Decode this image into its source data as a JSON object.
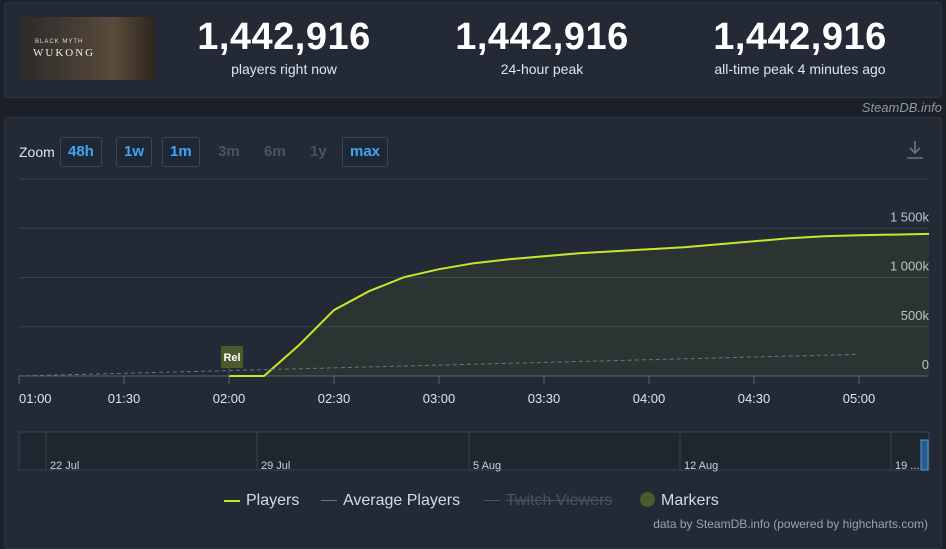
{
  "thumbnail": {
    "subtitle": "BLACK MYTH",
    "title": "WUKONG"
  },
  "stats": [
    {
      "value": "1,442,916",
      "label": "players right now"
    },
    {
      "value": "1,442,916",
      "label": "24-hour peak"
    },
    {
      "value": "1,442,916",
      "label": "all-time peak 4 minutes ago"
    }
  ],
  "source": "SteamDB.info",
  "zoom": {
    "label": "Zoom",
    "buttons": [
      "48h",
      "1w",
      "1m",
      "3m",
      "6m",
      "1y",
      "max"
    ]
  },
  "chart_data": {
    "type": "line",
    "x": [
      "01:00",
      "01:10",
      "01:20",
      "01:30",
      "01:40",
      "01:50",
      "02:00",
      "02:10",
      "02:20",
      "02:30",
      "02:40",
      "02:50",
      "03:00",
      "03:10",
      "03:20",
      "03:30",
      "03:40",
      "03:50",
      "04:00",
      "04:10",
      "04:20",
      "04:30",
      "04:40",
      "04:50",
      "05:00",
      "05:10",
      "05:20"
    ],
    "series": [
      {
        "name": "Players",
        "color": "#c6e82a",
        "dash": false,
        "values": [
          null,
          null,
          null,
          null,
          null,
          null,
          0,
          0,
          314000,
          669000,
          861000,
          1003000,
          1084000,
          1145000,
          1185000,
          1216000,
          1246000,
          1266000,
          1287000,
          1307000,
          1337000,
          1368000,
          1398000,
          1418000,
          1428000,
          1436000,
          1443000
        ]
      },
      {
        "name": "Average Players",
        "color": "#6b7280",
        "dash": true,
        "values": [
          0,
          9200,
          18400,
          27600,
          36800,
          46000,
          55200,
          64400,
          73600,
          82800,
          92000,
          101200,
          110400,
          119600,
          128800,
          138000,
          147200,
          156400,
          165600,
          174800,
          184000,
          193200,
          202400,
          211600,
          220800,
          null,
          null
        ]
      },
      {
        "name": "Twitch Viewers",
        "color": "#4a5263",
        "dash": true,
        "hidden": true,
        "values": [
          null,
          null,
          null,
          null,
          null,
          null,
          null,
          null,
          null,
          null,
          null,
          null,
          null,
          null,
          null,
          null,
          null,
          null,
          null,
          null,
          null,
          null,
          null,
          null,
          null,
          null,
          null
        ]
      }
    ],
    "xlim": [
      "01:00",
      "05:20"
    ],
    "xticks": [
      "01:00",
      "01:30",
      "02:00",
      "02:30",
      "03:00",
      "03:30",
      "04:00",
      "04:30",
      "05:00"
    ],
    "ylim": [
      0,
      2000000
    ],
    "yticks": [
      0,
      {
        "value": 500000,
        "label": "500k"
      },
      {
        "value": 1000000,
        "label": "1 000k"
      },
      {
        "value": 1500000,
        "label": "1 500k"
      }
    ],
    "grid": true,
    "markers": {
      "name": "Markers",
      "color": "#4b5b2c",
      "items": [
        {
          "x": "02:00",
          "label": "Rel"
        }
      ]
    },
    "navigator": {
      "labels": [
        "22 Jul",
        "29 Jul",
        "5 Aug",
        "12 Aug",
        "19 ..."
      ]
    },
    "credit": "data by SteamDB.info (powered by highcharts.com)"
  }
}
